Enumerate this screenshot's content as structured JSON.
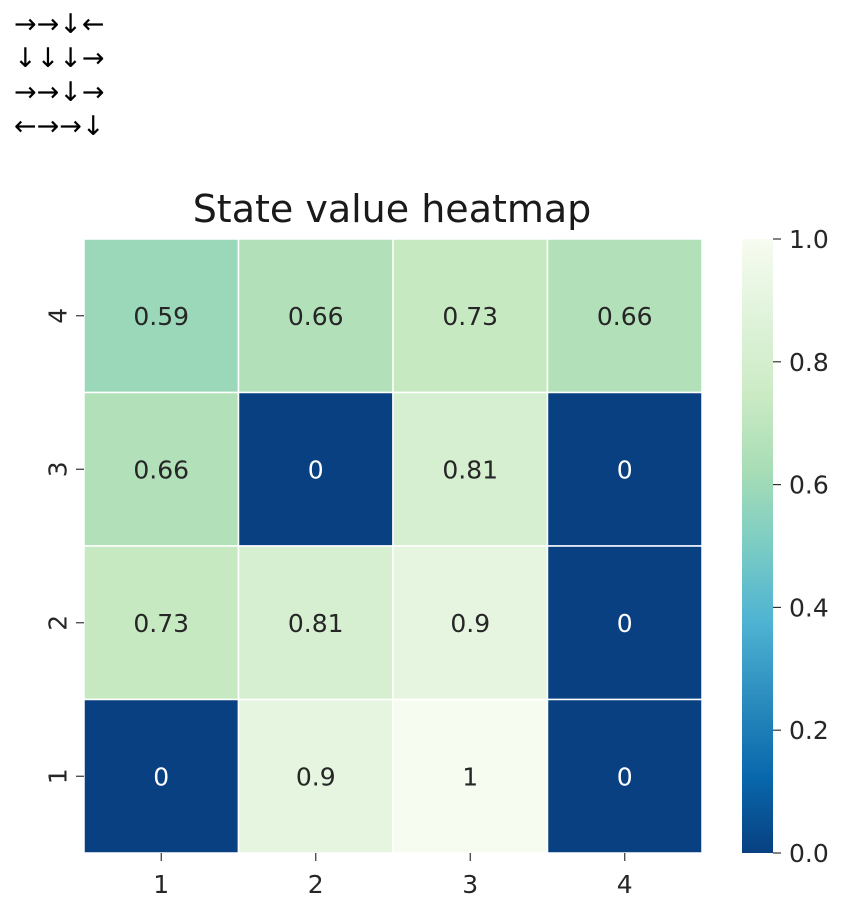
{
  "policy": {
    "rows": [
      "→→↓←",
      "↓↓↓→",
      "→→↓→",
      "←→→↓"
    ]
  },
  "chart_data": {
    "type": "heatmap",
    "title": "State value heatmap",
    "xlabel": "",
    "ylabel": "",
    "x_categories": [
      "1",
      "2",
      "3",
      "4"
    ],
    "y_categories_top_to_bottom": [
      "4",
      "3",
      "2",
      "1"
    ],
    "values_top_to_bottom": [
      [
        0.59,
        0.66,
        0.73,
        0.66
      ],
      [
        0.66,
        0,
        0.81,
        0
      ],
      [
        0.73,
        0.81,
        0.9,
        0
      ],
      [
        0,
        0.9,
        1,
        0
      ]
    ],
    "cell_labels_top_to_bottom": [
      [
        "0.59",
        "0.66",
        "0.73",
        "0.66"
      ],
      [
        "0.66",
        "0",
        "0.81",
        "0"
      ],
      [
        "0.73",
        "0.81",
        "0.9",
        "0"
      ],
      [
        "0",
        "0.9",
        "1",
        "0"
      ]
    ],
    "colormap": "GnBu_r",
    "vmin": 0.0,
    "vmax": 1.0,
    "colorbar_ticks": [
      "0.0",
      "0.2",
      "0.4",
      "0.6",
      "0.8",
      "1.0"
    ]
  }
}
